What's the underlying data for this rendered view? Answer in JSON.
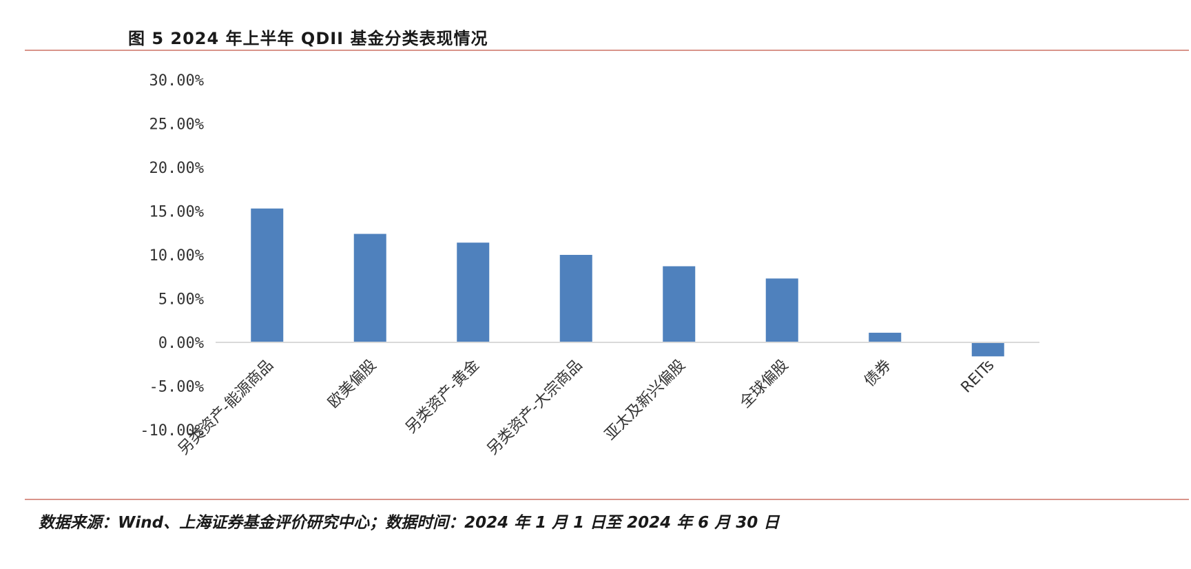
{
  "header": {
    "title": "图 5 2024 年上半年 QDII 基金分类表现情况"
  },
  "footer": {
    "source": "数据来源：Wind、上海证券基金评价研究中心；数据时间：2024 年 1 月 1 日至 2024 年 6 月 30 日"
  },
  "chart_data": {
    "type": "bar",
    "title": "",
    "xlabel": "",
    "ylabel": "",
    "categories": [
      "另类资产-能源商品",
      "欧美偏股",
      "另类资产-黄金",
      "另类资产-大宗商品",
      "亚太及新兴偏股",
      "全球偏股",
      "债券",
      "REITs"
    ],
    "values": [
      15.3,
      12.4,
      11.4,
      10.0,
      8.7,
      7.3,
      1.1,
      -1.6
    ],
    "ylim": [
      -10,
      30
    ],
    "yticks": [
      30,
      25,
      20,
      15,
      10,
      5,
      0,
      -5,
      -10
    ],
    "ytick_labels": [
      "30.00%",
      "25.00%",
      "20.00%",
      "15.00%",
      "10.00%",
      "5.00%",
      "0.00%",
      "-5.00%",
      "-10.00%"
    ],
    "grid": false,
    "legend": "none",
    "bar_color": "#4f81bd",
    "axis_color": "#d9d9d9"
  }
}
